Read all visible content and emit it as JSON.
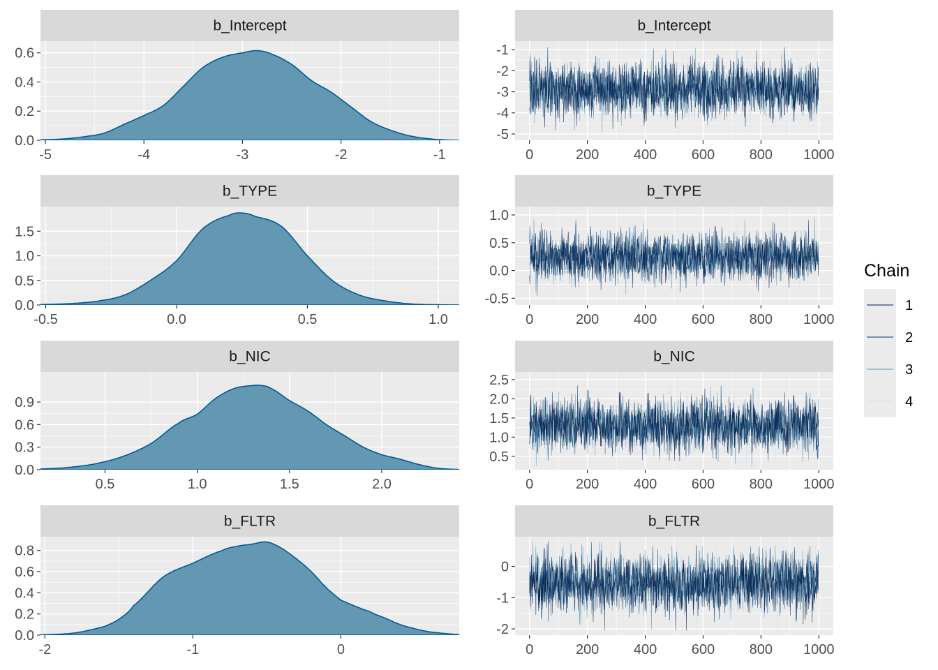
{
  "chart_data": [
    {
      "type": "area",
      "title": "b_Intercept",
      "xlim": [
        -5.05,
        -0.8
      ],
      "ylim": [
        0,
        0.68
      ],
      "x_ticks": [
        -5,
        -4,
        -3,
        -2,
        -1
      ],
      "x_tick_labels": [
        "-5",
        "-4",
        "-3",
        "-2",
        "-1"
      ],
      "y_ticks": [
        0.0,
        0.2,
        0.4,
        0.6
      ],
      "y_tick_labels": [
        "0.0",
        "0.2",
        "0.4",
        "0.6"
      ],
      "density": {
        "x": [
          -5.05,
          -4.8,
          -4.6,
          -4.4,
          -4.2,
          -4.0,
          -3.8,
          -3.6,
          -3.4,
          -3.2,
          -3.0,
          -2.85,
          -2.7,
          -2.5,
          -2.3,
          -2.1,
          -1.9,
          -1.7,
          -1.5,
          -1.3,
          -1.1,
          -0.95,
          -0.8
        ],
        "y": [
          0.003,
          0.01,
          0.025,
          0.05,
          0.11,
          0.17,
          0.24,
          0.37,
          0.5,
          0.57,
          0.6,
          0.615,
          0.59,
          0.52,
          0.41,
          0.33,
          0.23,
          0.13,
          0.07,
          0.03,
          0.01,
          0.003,
          0.0
        ]
      }
    },
    {
      "type": "line",
      "title": "b_Intercept",
      "xlim": [
        -50,
        1050
      ],
      "ylim": [
        -5.3,
        -0.6
      ],
      "x_ticks": [
        0,
        200,
        400,
        600,
        800,
        1000
      ],
      "x_tick_labels": [
        "0",
        "200",
        "400",
        "600",
        "800",
        "1000"
      ],
      "y_ticks": [
        -5,
        -4,
        -3,
        -2,
        -1
      ],
      "y_tick_labels": [
        "-5",
        "-4",
        "-3",
        "-2",
        "-1"
      ],
      "trace": {
        "iterations": 1000,
        "mean": -2.9,
        "sd": 0.62,
        "min": -4.9,
        "max": -0.85
      }
    },
    {
      "type": "area",
      "title": "b_TYPE",
      "xlim": [
        -0.52,
        1.08
      ],
      "ylim": [
        0,
        2.0
      ],
      "x_ticks": [
        -0.5,
        0.0,
        0.5,
        1.0
      ],
      "x_tick_labels": [
        "-0.5",
        "0.0",
        "0.5",
        "1.0"
      ],
      "y_ticks": [
        0.0,
        0.5,
        1.0,
        1.5
      ],
      "y_tick_labels": [
        "0.0",
        "0.5",
        "1.0",
        "1.5"
      ],
      "density": {
        "x": [
          -0.52,
          -0.4,
          -0.3,
          -0.2,
          -0.1,
          0.0,
          0.1,
          0.2,
          0.25,
          0.3,
          0.4,
          0.5,
          0.6,
          0.7,
          0.8,
          0.9,
          1.0,
          1.08
        ],
        "y": [
          0.01,
          0.03,
          0.08,
          0.2,
          0.5,
          0.9,
          1.55,
          1.82,
          1.87,
          1.8,
          1.6,
          1.0,
          0.48,
          0.2,
          0.08,
          0.02,
          0.005,
          0.0
        ]
      }
    },
    {
      "type": "line",
      "title": "b_TYPE",
      "xlim": [
        -50,
        1050
      ],
      "ylim": [
        -0.62,
        1.15
      ],
      "x_ticks": [
        0,
        200,
        400,
        600,
        800,
        1000
      ],
      "x_tick_labels": [
        "0",
        "200",
        "400",
        "600",
        "800",
        "1000"
      ],
      "y_ticks": [
        -0.5,
        0.0,
        0.5,
        1.0
      ],
      "y_tick_labels": [
        "-0.5",
        "0.0",
        "0.5",
        "1.0"
      ],
      "trace": {
        "iterations": 1000,
        "mean": 0.25,
        "sd": 0.21,
        "min": -0.5,
        "max": 1.05
      }
    },
    {
      "type": "area",
      "title": "b_NIC",
      "xlim": [
        0.15,
        2.42
      ],
      "ylim": [
        0,
        1.3
      ],
      "x_ticks": [
        0.5,
        1.0,
        1.5,
        2.0
      ],
      "x_tick_labels": [
        "0.5",
        "1.0",
        "1.5",
        "2.0"
      ],
      "y_ticks": [
        0.0,
        0.3,
        0.6,
        0.9
      ],
      "y_tick_labels": [
        "0.0",
        "0.3",
        "0.6",
        "0.9"
      ],
      "density": {
        "x": [
          0.15,
          0.3,
          0.45,
          0.6,
          0.75,
          0.9,
          1.0,
          1.1,
          1.2,
          1.3,
          1.35,
          1.4,
          1.5,
          1.6,
          1.7,
          1.8,
          1.9,
          2.0,
          2.1,
          2.2,
          2.3,
          2.42
        ],
        "y": [
          0.01,
          0.03,
          0.08,
          0.18,
          0.35,
          0.62,
          0.74,
          0.95,
          1.08,
          1.12,
          1.12,
          1.08,
          0.92,
          0.78,
          0.6,
          0.45,
          0.3,
          0.2,
          0.14,
          0.07,
          0.02,
          0.003
        ]
      }
    },
    {
      "type": "line",
      "title": "b_NIC",
      "xlim": [
        -50,
        1050
      ],
      "ylim": [
        0.15,
        2.7
      ],
      "x_ticks": [
        0,
        200,
        400,
        600,
        800,
        1000
      ],
      "x_tick_labels": [
        "0",
        "200",
        "400",
        "600",
        "800",
        "1000"
      ],
      "y_ticks": [
        0.5,
        1.0,
        1.5,
        2.0,
        2.5
      ],
      "y_tick_labels": [
        "0.5",
        "1.0",
        "1.5",
        "2.0",
        "2.5"
      ],
      "trace": {
        "iterations": 1000,
        "mean": 1.3,
        "sd": 0.33,
        "min": 0.2,
        "max": 2.35
      }
    },
    {
      "type": "area",
      "title": "b_FLTR",
      "xlim": [
        -2.03,
        0.8
      ],
      "ylim": [
        0,
        0.93
      ],
      "x_ticks": [
        -2,
        -1,
        0
      ],
      "x_tick_labels": [
        "-2",
        "-1",
        "0"
      ],
      "y_ticks": [
        0.0,
        0.2,
        0.4,
        0.6,
        0.8
      ],
      "y_tick_labels": [
        "0.0",
        "0.2",
        "0.4",
        "0.6",
        "0.8"
      ],
      "density": {
        "x": [
          -2.03,
          -1.8,
          -1.6,
          -1.5,
          -1.4,
          -1.2,
          -1.0,
          -0.8,
          -0.7,
          -0.6,
          -0.5,
          -0.4,
          -0.3,
          -0.2,
          -0.1,
          0.0,
          0.2,
          0.3,
          0.4,
          0.5,
          0.6,
          0.8
        ],
        "y": [
          0.003,
          0.02,
          0.08,
          0.15,
          0.28,
          0.55,
          0.68,
          0.8,
          0.84,
          0.86,
          0.88,
          0.82,
          0.72,
          0.6,
          0.45,
          0.33,
          0.22,
          0.16,
          0.1,
          0.06,
          0.03,
          0.005
        ]
      }
    },
    {
      "type": "line",
      "title": "b_FLTR",
      "xlim": [
        -50,
        1050
      ],
      "ylim": [
        -2.2,
        0.95
      ],
      "x_ticks": [
        0,
        200,
        400,
        600,
        800,
        1000
      ],
      "x_tick_labels": [
        "0",
        "200",
        "400",
        "600",
        "800",
        "1000"
      ],
      "y_ticks": [
        -2,
        -1,
        0
      ],
      "y_tick_labels": [
        "-2",
        "-1",
        "0"
      ],
      "trace": {
        "iterations": 1000,
        "mean": -0.55,
        "sd": 0.45,
        "min": -2.05,
        "max": 0.8
      }
    }
  ],
  "legend": {
    "title": "Chain",
    "placement": "right",
    "entries": [
      {
        "label": "1",
        "color": "#011f4b"
      },
      {
        "label": "2",
        "color": "#03396c"
      },
      {
        "label": "3",
        "color": "#6497b1"
      },
      {
        "label": "4",
        "color": "#d1e1ec"
      }
    ]
  },
  "colors": {
    "density_fill": "#6497b1",
    "density_line": "#005b96"
  }
}
